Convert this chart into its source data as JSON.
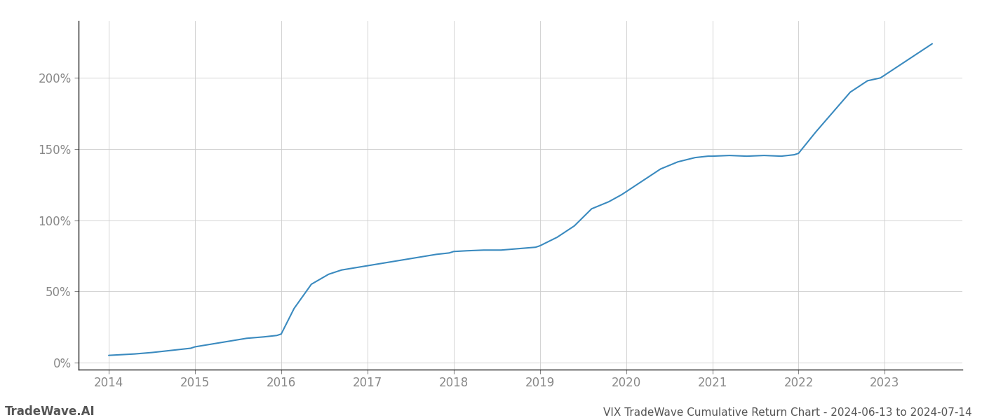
{
  "title": "VIX TradeWave Cumulative Return Chart - 2024-06-13 to 2024-07-14",
  "watermark": "TradeWave.AI",
  "line_color": "#3a8abf",
  "background_color": "#ffffff",
  "grid_color": "#cccccc",
  "years": [
    2014,
    2015,
    2016,
    2017,
    2018,
    2019,
    2020,
    2021,
    2022,
    2023
  ],
  "x_values": [
    2014.0,
    2014.15,
    2014.3,
    2014.5,
    2014.65,
    2014.8,
    2014.95,
    2015.0,
    2015.2,
    2015.4,
    2015.6,
    2015.8,
    2015.95,
    2016.0,
    2016.15,
    2016.35,
    2016.55,
    2016.7,
    2016.9,
    2017.0,
    2017.2,
    2017.4,
    2017.6,
    2017.8,
    2017.95,
    2018.0,
    2018.15,
    2018.35,
    2018.55,
    2018.75,
    2018.95,
    2019.0,
    2019.2,
    2019.4,
    2019.6,
    2019.8,
    2019.95,
    2020.0,
    2020.2,
    2020.4,
    2020.6,
    2020.8,
    2020.95,
    2021.0,
    2021.2,
    2021.4,
    2021.6,
    2021.8,
    2021.95,
    2022.0,
    2022.2,
    2022.4,
    2022.6,
    2022.8,
    2022.95,
    2023.0,
    2023.2,
    2023.4,
    2023.55
  ],
  "y_values": [
    5,
    5.5,
    6,
    7,
    8,
    9,
    10,
    11,
    13,
    15,
    17,
    18,
    19,
    20,
    38,
    55,
    62,
    65,
    67,
    68,
    70,
    72,
    74,
    76,
    77,
    78,
    78.5,
    79,
    79,
    80,
    81,
    82,
    88,
    96,
    108,
    113,
    118,
    120,
    128,
    136,
    141,
    144,
    145,
    145,
    145.5,
    145,
    145.5,
    145,
    146,
    147,
    162,
    176,
    190,
    198,
    200,
    202,
    210,
    218,
    224
  ],
  "ylim": [
    -5,
    240
  ],
  "yticks": [
    0,
    50,
    100,
    150,
    200
  ],
  "ytick_labels": [
    "0%",
    "50%",
    "100%",
    "150%",
    "200%"
  ],
  "xlim_left": 2013.65,
  "xlim_right": 2023.9,
  "title_fontsize": 11,
  "tick_fontsize": 12,
  "watermark_fontsize": 12,
  "axis_color": "#888888",
  "title_color": "#555555",
  "spine_color": "#222222"
}
